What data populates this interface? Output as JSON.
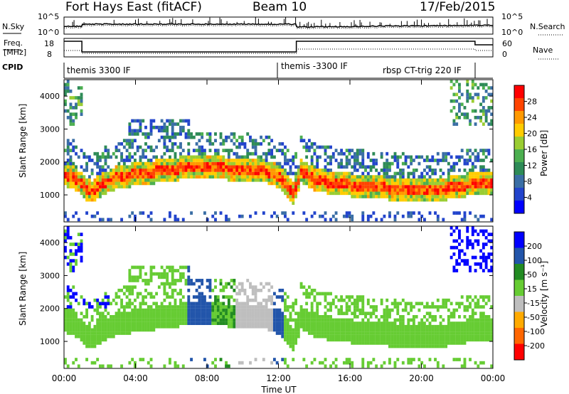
{
  "header": {
    "radar": "Fort Hays East (fitACF)",
    "beam": "Beam 10",
    "date": "17/Feb/2015"
  },
  "noise_panel": {
    "left_label": "N.Sky",
    "right_label": "N.Search",
    "left_ticks": [
      "10^5",
      "10^0"
    ],
    "right_ticks": [
      "10^5",
      "10^0"
    ]
  },
  "freq_panel": {
    "left_label_1": "Freq.",
    "left_label_2": "[MHz]",
    "right_label": "Nave",
    "left_ticks": [
      "18",
      "8"
    ],
    "right_ticks": [
      "60",
      "0"
    ]
  },
  "cpid_panel": {
    "label": "CPID",
    "segments": [
      {
        "text": "themis 3300 IF",
        "start_hour": 0
      },
      {
        "text": "themis -3300 IF",
        "start_hour": 13
      },
      {
        "text": "rbsp CT-trig 220 IF",
        "start_hour": 22.9
      }
    ]
  },
  "chart_data": [
    {
      "type": "heatmap",
      "title": "Power",
      "ylabel": "Slant Range [km]",
      "ylim": [
        180,
        4500
      ],
      "yticks": [
        "1000",
        "2000",
        "3000",
        "4000"
      ],
      "colorbar_label": "Power [dB]",
      "colorbar_ticks": [
        "28",
        "24",
        "20",
        "16",
        "12",
        "8",
        "4"
      ],
      "colorbar_colors": [
        "#0000ff",
        "#2244cc",
        "#3a6ea5",
        "#2e8b57",
        "#4caf50",
        "#9acd32",
        "#ffcc00",
        "#ff9900",
        "#ff4400",
        "#ff0000"
      ],
      "colorbar_range": [
        0,
        30
      ]
    },
    {
      "type": "heatmap",
      "title": "Velocity",
      "ylabel": "Slant Range [km]",
      "ylim": [
        180,
        4500
      ],
      "yticks": [
        "1000",
        "2000",
        "3000",
        "4000"
      ],
      "colorbar_label": "Velocity [m s⁻¹]",
      "colorbar_ticks": [
        "200",
        "100",
        "50",
        "15",
        "-15",
        "-50",
        "-100",
        "-200"
      ],
      "colorbar_colors": [
        "#0000ff",
        "#2255aa",
        "#228b22",
        "#66cc33",
        "#bebebe",
        "#ffaa00",
        "#ff6600",
        "#ff0000"
      ],
      "colorbar_range": [
        -250,
        250
      ]
    }
  ],
  "x_axis": {
    "label": "Time UT",
    "ticks": [
      "00:00",
      "04:00",
      "08:00",
      "12:00",
      "16:00",
      "20:00",
      "00:00"
    ],
    "hours": [
      0,
      4,
      8,
      12,
      16,
      20,
      24
    ]
  }
}
